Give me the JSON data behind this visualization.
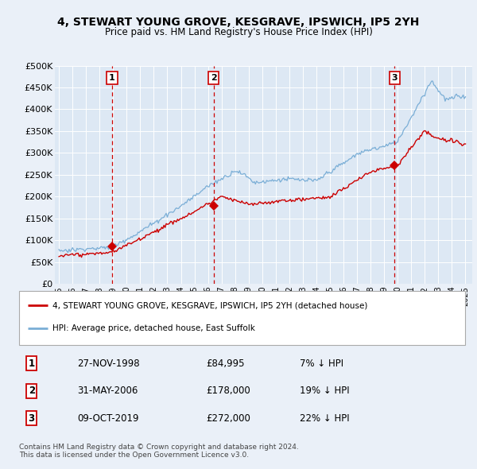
{
  "title": "4, STEWART YOUNG GROVE, KESGRAVE, IPSWICH, IP5 2YH",
  "subtitle": "Price paid vs. HM Land Registry's House Price Index (HPI)",
  "background_color": "#eaf0f8",
  "plot_bg_color": "#dde8f4",
  "ylabel_ticks": [
    "£0",
    "£50K",
    "£100K",
    "£150K",
    "£200K",
    "£250K",
    "£300K",
    "£350K",
    "£400K",
    "£450K",
    "£500K"
  ],
  "ytick_values": [
    0,
    50000,
    100000,
    150000,
    200000,
    250000,
    300000,
    350000,
    400000,
    450000,
    500000
  ],
  "xlim_start": 1994.7,
  "xlim_end": 2025.5,
  "ylim_min": 0,
  "ylim_max": 500000,
  "sale_dates": [
    1998.92,
    2006.42,
    2019.77
  ],
  "sale_prices": [
    84995,
    178000,
    272000
  ],
  "sale_labels": [
    "1",
    "2",
    "3"
  ],
  "sale_info": [
    {
      "label": "1",
      "date": "27-NOV-1998",
      "price": "£84,995",
      "hpi": "7% ↓ HPI"
    },
    {
      "label": "2",
      "date": "31-MAY-2006",
      "price": "£178,000",
      "hpi": "19% ↓ HPI"
    },
    {
      "label": "3",
      "date": "09-OCT-2019",
      "price": "£272,000",
      "hpi": "22% ↓ HPI"
    }
  ],
  "legend_entries": [
    {
      "label": "4, STEWART YOUNG GROVE, KESGRAVE, IPSWICH, IP5 2YH (detached house)",
      "color": "#cc0000"
    },
    {
      "label": "HPI: Average price, detached house, East Suffolk",
      "color": "#7aaed6"
    }
  ],
  "footer": "Contains HM Land Registry data © Crown copyright and database right 2024.\nThis data is licensed under the Open Government Licence v3.0.",
  "hpi_line_color": "#7aaed6",
  "price_line_color": "#cc0000",
  "vline_color": "#cc0000",
  "marker_color": "#cc0000",
  "grid_color": "#c8d8e8",
  "x_ticks": [
    1995,
    1996,
    1997,
    1998,
    1999,
    2000,
    2001,
    2002,
    2003,
    2004,
    2005,
    2006,
    2007,
    2008,
    2009,
    2010,
    2011,
    2012,
    2013,
    2014,
    2015,
    2016,
    2017,
    2018,
    2019,
    2020,
    2021,
    2022,
    2023,
    2024,
    2025
  ]
}
